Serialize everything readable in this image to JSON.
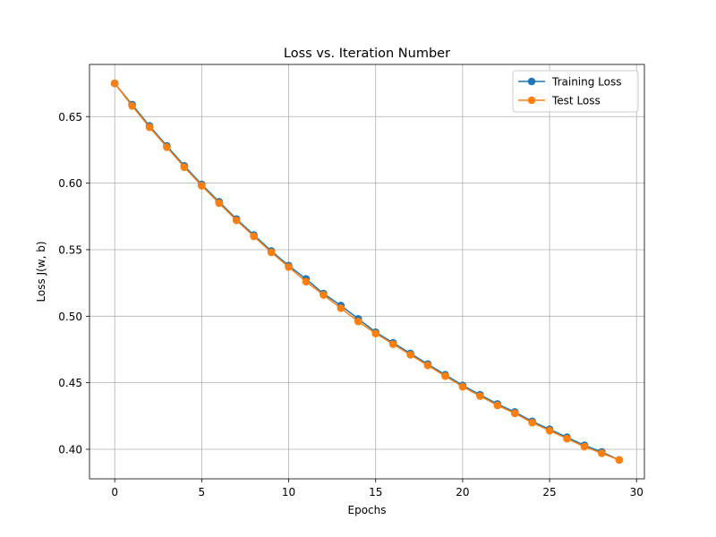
{
  "chart_data": {
    "type": "line",
    "title": "Loss vs. Iteration Number",
    "xlabel": "Epochs",
    "ylabel": "Loss J(w, b)",
    "xlim": [
      -1.45,
      30.45
    ],
    "ylim": [
      0.3778,
      0.6892
    ],
    "xticks": [
      0,
      5,
      10,
      15,
      20,
      25,
      30
    ],
    "yticks": [
      0.4,
      0.45,
      0.5,
      0.55,
      0.6,
      0.65
    ],
    "xtick_labels": [
      "0",
      "5",
      "10",
      "15",
      "20",
      "25",
      "30"
    ],
    "ytick_labels": [
      "0.40",
      "0.45",
      "0.50",
      "0.55",
      "0.60",
      "0.65"
    ],
    "grid": true,
    "legend": "upper right",
    "x": [
      0,
      1,
      2,
      3,
      4,
      5,
      6,
      7,
      8,
      9,
      10,
      11,
      12,
      13,
      14,
      15,
      16,
      17,
      18,
      19,
      20,
      21,
      22,
      23,
      24,
      25,
      26,
      27,
      28,
      29
    ],
    "series": [
      {
        "name": "Training Loss",
        "color": "#1f77b4",
        "marker": "circle",
        "values": [
          0.675,
          0.659,
          0.643,
          0.628,
          0.613,
          0.599,
          0.586,
          0.573,
          0.561,
          0.549,
          0.538,
          0.528,
          0.517,
          0.508,
          0.498,
          0.488,
          0.48,
          0.472,
          0.464,
          0.456,
          0.448,
          0.441,
          0.434,
          0.428,
          0.421,
          0.415,
          0.409,
          0.403,
          0.398,
          0.392
        ]
      },
      {
        "name": "Test Loss",
        "color": "#ff7f0e",
        "marker": "circle",
        "values": [
          0.675,
          0.658,
          0.642,
          0.627,
          0.612,
          0.598,
          0.585,
          0.572,
          0.56,
          0.548,
          0.537,
          0.526,
          0.516,
          0.506,
          0.496,
          0.487,
          0.479,
          0.471,
          0.463,
          0.455,
          0.447,
          0.44,
          0.433,
          0.427,
          0.42,
          0.414,
          0.408,
          0.402,
          0.397,
          0.392
        ]
      }
    ]
  }
}
